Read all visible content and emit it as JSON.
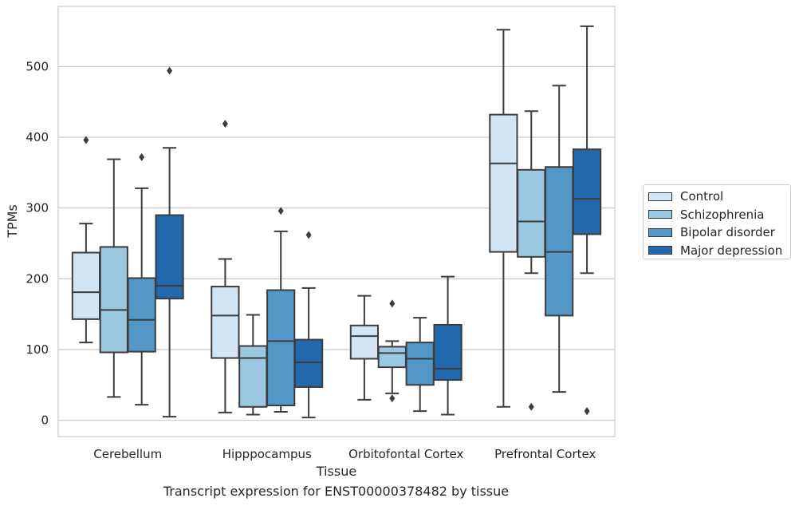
{
  "caption": "Transcript expression for ENST00000378482 by tissue",
  "chart_data": {
    "type": "boxplot",
    "xlabel": "Tissue",
    "ylabel": "TPMs",
    "ylim": [
      -23,
      585
    ],
    "yticks": [
      0,
      100,
      200,
      300,
      400,
      500
    ],
    "grid": "horizontal",
    "legend_position": "right, outside plot",
    "categories": [
      "Cerebellum",
      "Hipppocampus",
      "Orbitofontal Cortex",
      "Prefrontal Cortex"
    ],
    "series": [
      {
        "name": "Control",
        "color": "#d3e4f3",
        "boxes": [
          {
            "whislo": 110,
            "q1": 143,
            "med": 181,
            "q3": 237,
            "whishi": 278,
            "fliers": [
              396
            ]
          },
          {
            "whislo": 11,
            "q1": 88,
            "med": 148,
            "q3": 189,
            "whishi": 228,
            "fliers": [
              419
            ]
          },
          {
            "whislo": 29,
            "q1": 87,
            "med": 119,
            "q3": 134,
            "whishi": 176,
            "fliers": []
          },
          {
            "whislo": 19,
            "q1": 238,
            "med": 363,
            "q3": 432,
            "whishi": 552,
            "fliers": []
          }
        ]
      },
      {
        "name": "Schizophrenia",
        "color": "#9ac8e0",
        "boxes": [
          {
            "whislo": 33,
            "q1": 96,
            "med": 156,
            "q3": 245,
            "whishi": 369,
            "fliers": []
          },
          {
            "whislo": 8,
            "q1": 19,
            "med": 88,
            "q3": 105,
            "whishi": 149,
            "fliers": []
          },
          {
            "whislo": 38,
            "q1": 75,
            "med": 95,
            "q3": 104,
            "whishi": 112,
            "fliers": [
              31,
              165
            ]
          },
          {
            "whislo": 208,
            "q1": 231,
            "med": 281,
            "q3": 354,
            "whishi": 437,
            "fliers": [
              19
            ]
          }
        ]
      },
      {
        "name": "Bipolar disorder",
        "color": "#5297c5",
        "boxes": [
          {
            "whislo": 22,
            "q1": 97,
            "med": 142,
            "q3": 201,
            "whishi": 328,
            "fliers": [
              372
            ]
          },
          {
            "whislo": 12,
            "q1": 21,
            "med": 112,
            "q3": 184,
            "whishi": 267,
            "fliers": [
              296
            ]
          },
          {
            "whislo": 13,
            "q1": 50,
            "med": 87,
            "q3": 110,
            "whishi": 145,
            "fliers": []
          },
          {
            "whislo": 40,
            "q1": 148,
            "med": 238,
            "q3": 358,
            "whishi": 473,
            "fliers": []
          }
        ]
      },
      {
        "name": "Major depression",
        "color": "#2268ad",
        "boxes": [
          {
            "whislo": 5,
            "q1": 172,
            "med": 190,
            "q3": 290,
            "whishi": 385,
            "fliers": [
              494
            ]
          },
          {
            "whislo": 4,
            "q1": 47,
            "med": 82,
            "q3": 114,
            "whishi": 187,
            "fliers": [
              262
            ]
          },
          {
            "whislo": 8,
            "q1": 57,
            "med": 73,
            "q3": 135,
            "whishi": 203,
            "fliers": []
          },
          {
            "whislo": 208,
            "q1": 263,
            "med": 313,
            "q3": 383,
            "whishi": 557,
            "fliers": [
              13
            ]
          }
        ]
      }
    ]
  }
}
